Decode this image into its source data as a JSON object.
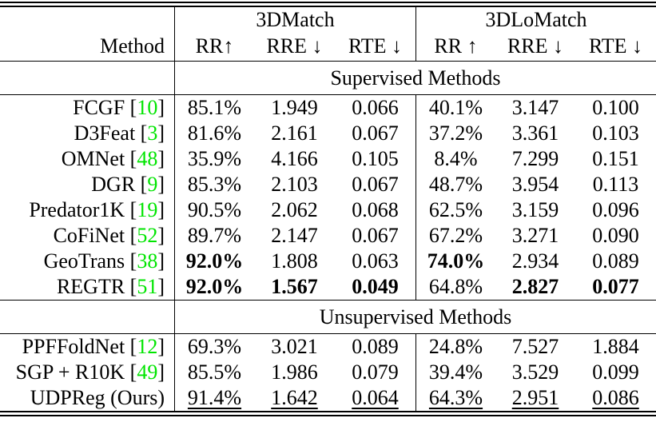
{
  "table": {
    "accent_green": "#00e500",
    "method_header": "Method",
    "title_groups": [
      "3DMatch",
      "3DLoMatch"
    ],
    "columns": [
      [
        "RR↑",
        "RRE ↓",
        "RTE ↓"
      ],
      [
        "RR ↑",
        "RRE ↓",
        "RTE ↓"
      ]
    ],
    "sections": [
      {
        "title": "Supervised Methods",
        "rows": [
          {
            "method": "FCGF",
            "cite": "10",
            "values": [
              "85.1%",
              "1.949",
              "0.066",
              "40.1%",
              "3.147",
              "0.100"
            ],
            "bold": [],
            "underline": []
          },
          {
            "method": "D3Feat",
            "cite": "3",
            "values": [
              "81.6%",
              "2.161",
              "0.067",
              "37.2%",
              "3.361",
              "0.103"
            ],
            "bold": [],
            "underline": []
          },
          {
            "method": "OMNet",
            "cite": "48",
            "values": [
              "35.9%",
              "4.166",
              "0.105",
              "8.4%",
              "7.299",
              "0.151"
            ],
            "bold": [],
            "underline": []
          },
          {
            "method": "DGR",
            "cite": "9",
            "values": [
              "85.3%",
              "2.103",
              "0.067",
              "48.7%",
              "3.954",
              "0.113"
            ],
            "bold": [],
            "underline": []
          },
          {
            "method": "Predator1K",
            "cite": "19",
            "values": [
              "90.5%",
              "2.062",
              "0.068",
              "62.5%",
              "3.159",
              "0.096"
            ],
            "bold": [],
            "underline": []
          },
          {
            "method": "CoFiNet",
            "cite": "52",
            "values": [
              "89.7%",
              "2.147",
              "0.067",
              "67.2%",
              "3.271",
              "0.090"
            ],
            "bold": [],
            "underline": []
          },
          {
            "method": "GeoTrans",
            "cite": "38",
            "values": [
              "92.0%",
              "1.808",
              "0.063",
              "74.0%",
              "2.934",
              "0.089"
            ],
            "bold": [
              0,
              3
            ],
            "underline": []
          },
          {
            "method": "REGTR",
            "cite": "51",
            "values": [
              "92.0%",
              "1.567",
              "0.049",
              "64.8%",
              "2.827",
              "0.077"
            ],
            "bold": [
              0,
              1,
              2,
              4,
              5
            ],
            "underline": []
          }
        ]
      },
      {
        "title": "Unsupervised Methods",
        "rows": [
          {
            "method": "PPFFoldNet",
            "cite": "12",
            "values": [
              "69.3%",
              "3.021",
              "0.089",
              "24.8%",
              "7.527",
              "1.884"
            ],
            "bold": [],
            "underline": []
          },
          {
            "method": "SGP + R10K",
            "cite": "49",
            "values": [
              "85.5%",
              "1.986",
              "0.079",
              "39.4%",
              "3.529",
              "0.099"
            ],
            "bold": [],
            "underline": []
          },
          {
            "method": "UDPReg (Ours)",
            "cite": null,
            "values": [
              "91.4%",
              "1.642",
              "0.064",
              "64.3%",
              "2.951",
              "0.086"
            ],
            "bold": [],
            "underline": [
              0,
              1,
              2,
              3,
              4,
              5
            ]
          }
        ]
      }
    ]
  }
}
